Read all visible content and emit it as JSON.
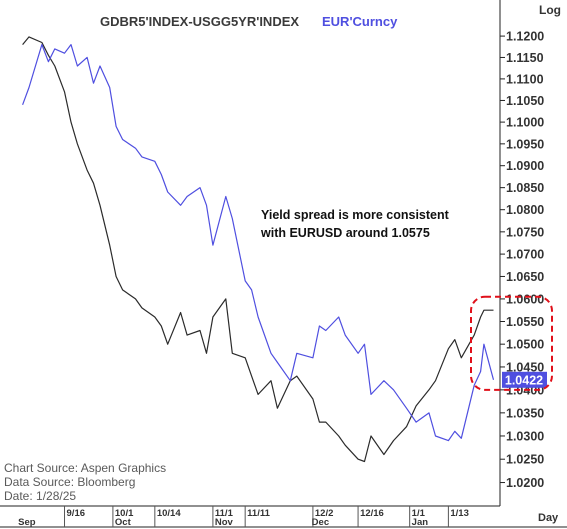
{
  "chart_data": {
    "type": "line",
    "title": "GDBR5'INDEX-USGG5YR'INDEX",
    "title_color": "#3a3a3a",
    "series": [
      {
        "name": "GDBR5'INDEX-USGG5YR'INDEX",
        "color": "#2b2b2b",
        "x": [
          "2024-09-03",
          "2024-09-05",
          "2024-09-09",
          "2024-09-11",
          "2024-09-13",
          "2024-09-16",
          "2024-09-18",
          "2024-09-20",
          "2024-09-23",
          "2024-09-25",
          "2024-09-27",
          "2024-09-30",
          "2024-10-02",
          "2024-10-04",
          "2024-10-08",
          "2024-10-10",
          "2024-10-14",
          "2024-10-16",
          "2024-10-18",
          "2024-10-22",
          "2024-10-24",
          "2024-10-28",
          "2024-10-30",
          "2024-11-01",
          "2024-11-05",
          "2024-11-07",
          "2024-11-11",
          "2024-11-13",
          "2024-11-15",
          "2024-11-19",
          "2024-11-21",
          "2024-11-25",
          "2024-11-27",
          "2024-12-02",
          "2024-12-04",
          "2024-12-06",
          "2024-12-10",
          "2024-12-12",
          "2024-12-16",
          "2024-12-18",
          "2024-12-20",
          "2024-12-24",
          "2024-12-27",
          "2024-12-31",
          "2025-01-03",
          "2025-01-07",
          "2025-01-09",
          "2025-01-13",
          "2025-01-15",
          "2025-01-17",
          "2025-01-21",
          "2025-01-23",
          "2025-01-24",
          "2025-01-27"
        ],
        "values": [
          1.118,
          1.1198,
          1.1185,
          1.1155,
          1.113,
          1.107,
          1.1,
          1.095,
          1.089,
          1.086,
          1.081,
          1.072,
          1.065,
          1.062,
          1.06,
          1.058,
          1.056,
          1.054,
          1.05,
          1.057,
          1.052,
          1.053,
          1.048,
          1.056,
          1.06,
          1.048,
          1.047,
          1.043,
          1.039,
          1.042,
          1.036,
          1.042,
          1.043,
          1.038,
          1.033,
          1.033,
          1.03,
          1.028,
          1.025,
          1.0245,
          1.03,
          1.026,
          1.029,
          1.032,
          1.0365,
          1.04,
          1.042,
          1.049,
          1.051,
          1.047,
          1.052,
          1.056,
          1.0575,
          1.0575
        ]
      },
      {
        "name": "EUR'Curncy",
        "color": "#4f4fe0",
        "x": [
          "2024-09-03",
          "2024-09-05",
          "2024-09-09",
          "2024-09-11",
          "2024-09-13",
          "2024-09-16",
          "2024-09-18",
          "2024-09-20",
          "2024-09-23",
          "2024-09-25",
          "2024-09-27",
          "2024-09-30",
          "2024-10-02",
          "2024-10-04",
          "2024-10-08",
          "2024-10-10",
          "2024-10-14",
          "2024-10-16",
          "2024-10-18",
          "2024-10-22",
          "2024-10-24",
          "2024-10-28",
          "2024-10-30",
          "2024-11-01",
          "2024-11-05",
          "2024-11-07",
          "2024-11-11",
          "2024-11-13",
          "2024-11-15",
          "2024-11-19",
          "2024-11-21",
          "2024-11-25",
          "2024-11-27",
          "2024-12-02",
          "2024-12-04",
          "2024-12-06",
          "2024-12-10",
          "2024-12-12",
          "2024-12-16",
          "2024-12-18",
          "2024-12-20",
          "2024-12-24",
          "2024-12-27",
          "2024-12-31",
          "2025-01-03",
          "2025-01-07",
          "2025-01-09",
          "2025-01-13",
          "2025-01-15",
          "2025-01-17",
          "2025-01-21",
          "2025-01-23",
          "2025-01-24",
          "2025-01-27"
        ],
        "values": [
          1.104,
          1.108,
          1.118,
          1.114,
          1.117,
          1.116,
          1.118,
          1.113,
          1.115,
          1.109,
          1.113,
          1.108,
          1.099,
          1.096,
          1.094,
          1.092,
          1.091,
          1.088,
          1.084,
          1.081,
          1.083,
          1.085,
          1.081,
          1.072,
          1.083,
          1.078,
          1.064,
          1.062,
          1.056,
          1.048,
          1.046,
          1.042,
          1.048,
          1.047,
          1.054,
          1.053,
          1.056,
          1.052,
          1.048,
          1.05,
          1.039,
          1.042,
          1.04,
          1.036,
          1.033,
          1.035,
          1.03,
          1.029,
          1.031,
          1.0295,
          1.041,
          1.044,
          1.05,
          1.0422
        ]
      }
    ],
    "legend": [
      {
        "label": "GDBR5'INDEX-USGG5YR'INDEX",
        "color": "#3a3a3a"
      },
      {
        "label": "EUR'Curncy",
        "color": "#4f4fe0"
      }
    ],
    "x_range": [
      "2024-08-27",
      "2025-01-29"
    ],
    "ylim": [
      1.015,
      1.1285
    ],
    "y_ticks": [
      "1.1200",
      "1.1150",
      "1.1100",
      "1.1050",
      "1.1000",
      "1.0950",
      "1.0900",
      "1.0850",
      "1.0800",
      "1.0750",
      "1.0700",
      "1.0650",
      "1.0600",
      "1.0550",
      "1.0500",
      "1.0450",
      "1.0400",
      "1.0350",
      "1.0300",
      "1.0250",
      "1.0200"
    ],
    "y_tick_values": [
      1.12,
      1.115,
      1.11,
      1.105,
      1.1,
      1.095,
      1.09,
      1.085,
      1.08,
      1.075,
      1.07,
      1.065,
      1.06,
      1.055,
      1.05,
      1.045,
      1.04,
      1.035,
      1.03,
      1.025,
      1.02
    ],
    "y_scale_label": "Log",
    "x_day_ticks": [
      {
        "label": "9/16",
        "date": "2024-09-16"
      },
      {
        "label": "10/1",
        "date": "2024-10-01"
      },
      {
        "label": "10/14",
        "date": "2024-10-14"
      },
      {
        "label": "11/1",
        "date": "2024-11-01"
      },
      {
        "label": "11/11",
        "date": "2024-11-11"
      },
      {
        "label": "12/2",
        "date": "2024-12-02"
      },
      {
        "label": "12/16",
        "date": "2024-12-16"
      },
      {
        "label": "1/1",
        "date": "2025-01-01"
      },
      {
        "label": "1/13",
        "date": "2025-01-13"
      }
    ],
    "x_month_ticks": [
      {
        "label": "Sep",
        "date": "2024-09-01"
      },
      {
        "label": "Oct",
        "date": "2024-10-01"
      },
      {
        "label": "Nov",
        "date": "2024-11-01"
      },
      {
        "label": "Dec",
        "date": "2024-12-01"
      },
      {
        "label": "Jan",
        "date": "2025-01-01"
      }
    ],
    "x_axis_label": "Day",
    "last_value_label": "1.0422",
    "last_value_color": "#4f4fe0",
    "annotation": {
      "lines": [
        "Yield spread is more consistent",
        "with EURUSD around 1.0575"
      ]
    },
    "highlight_box": {
      "color": "#e0101a",
      "date_from": "2025-01-20",
      "date_to": "2025-01-29",
      "value_from": 1.04,
      "value_to": 1.0605
    },
    "source_lines": [
      "Chart Source:  Aspen  Graphics",
      "Data  Source:  Bloomberg",
      "Date:     1/28/25"
    ],
    "grid": false,
    "legend_position": "top"
  }
}
